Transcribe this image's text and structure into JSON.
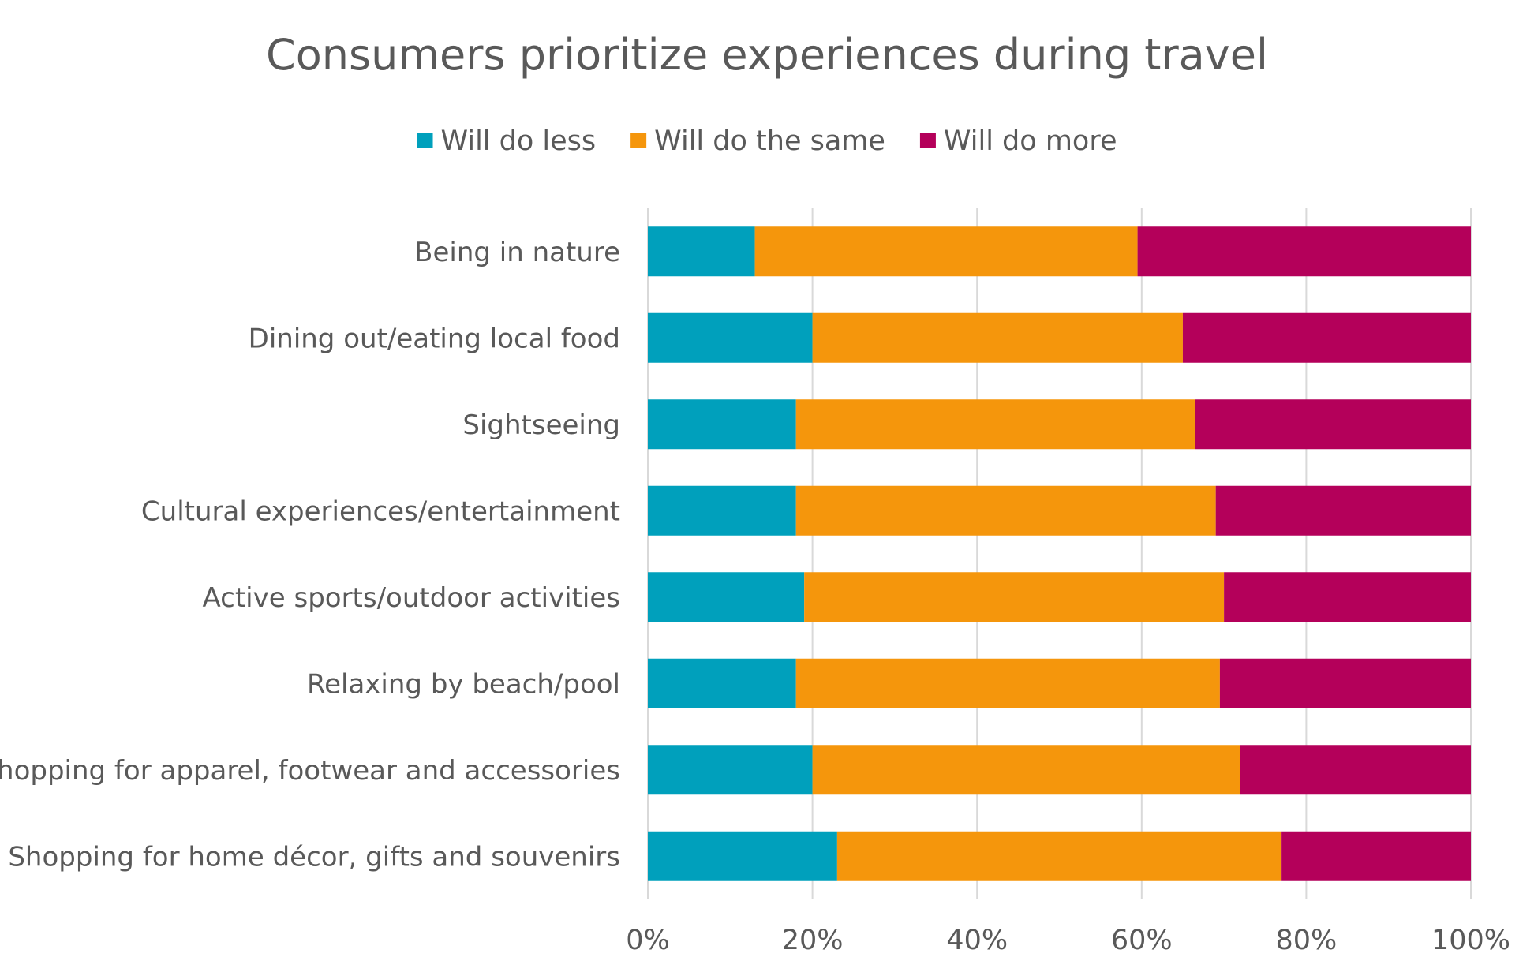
{
  "chart_data": {
    "type": "bar",
    "orientation": "horizontal",
    "stacked": "percent",
    "title": "Consumers prioritize experiences during travel",
    "xlabel": "",
    "ylabel": "",
    "xlim": [
      0,
      100
    ],
    "tick_labels": [
      "0%",
      "20%",
      "40%",
      "60%",
      "80%",
      "100%"
    ],
    "tick_values": [
      0,
      20,
      40,
      60,
      80,
      100
    ],
    "grid": true,
    "legend_position": "top",
    "categories": [
      "Being in nature",
      "Dining out/eating local food",
      "Sightseeing",
      "Cultural experiences/entertainment",
      "Active sports/outdoor activities",
      "Relaxing by beach/pool",
      "Shopping for apparel, footwear and accessories",
      "Shopping for home décor, gifts and souvenirs"
    ],
    "series": [
      {
        "name": "Will do less",
        "color": "#00a0bc",
        "values": [
          13,
          20,
          18,
          18,
          19,
          18,
          20,
          23
        ]
      },
      {
        "name": "Will do the same",
        "color": "#f5960c",
        "values": [
          46.5,
          45,
          48.5,
          51,
          51,
          51.5,
          52,
          54
        ]
      },
      {
        "name": "Will do more",
        "color": "#b4005a",
        "values": [
          40.5,
          35,
          33.5,
          31,
          30,
          30.5,
          28,
          23
        ]
      }
    ]
  }
}
